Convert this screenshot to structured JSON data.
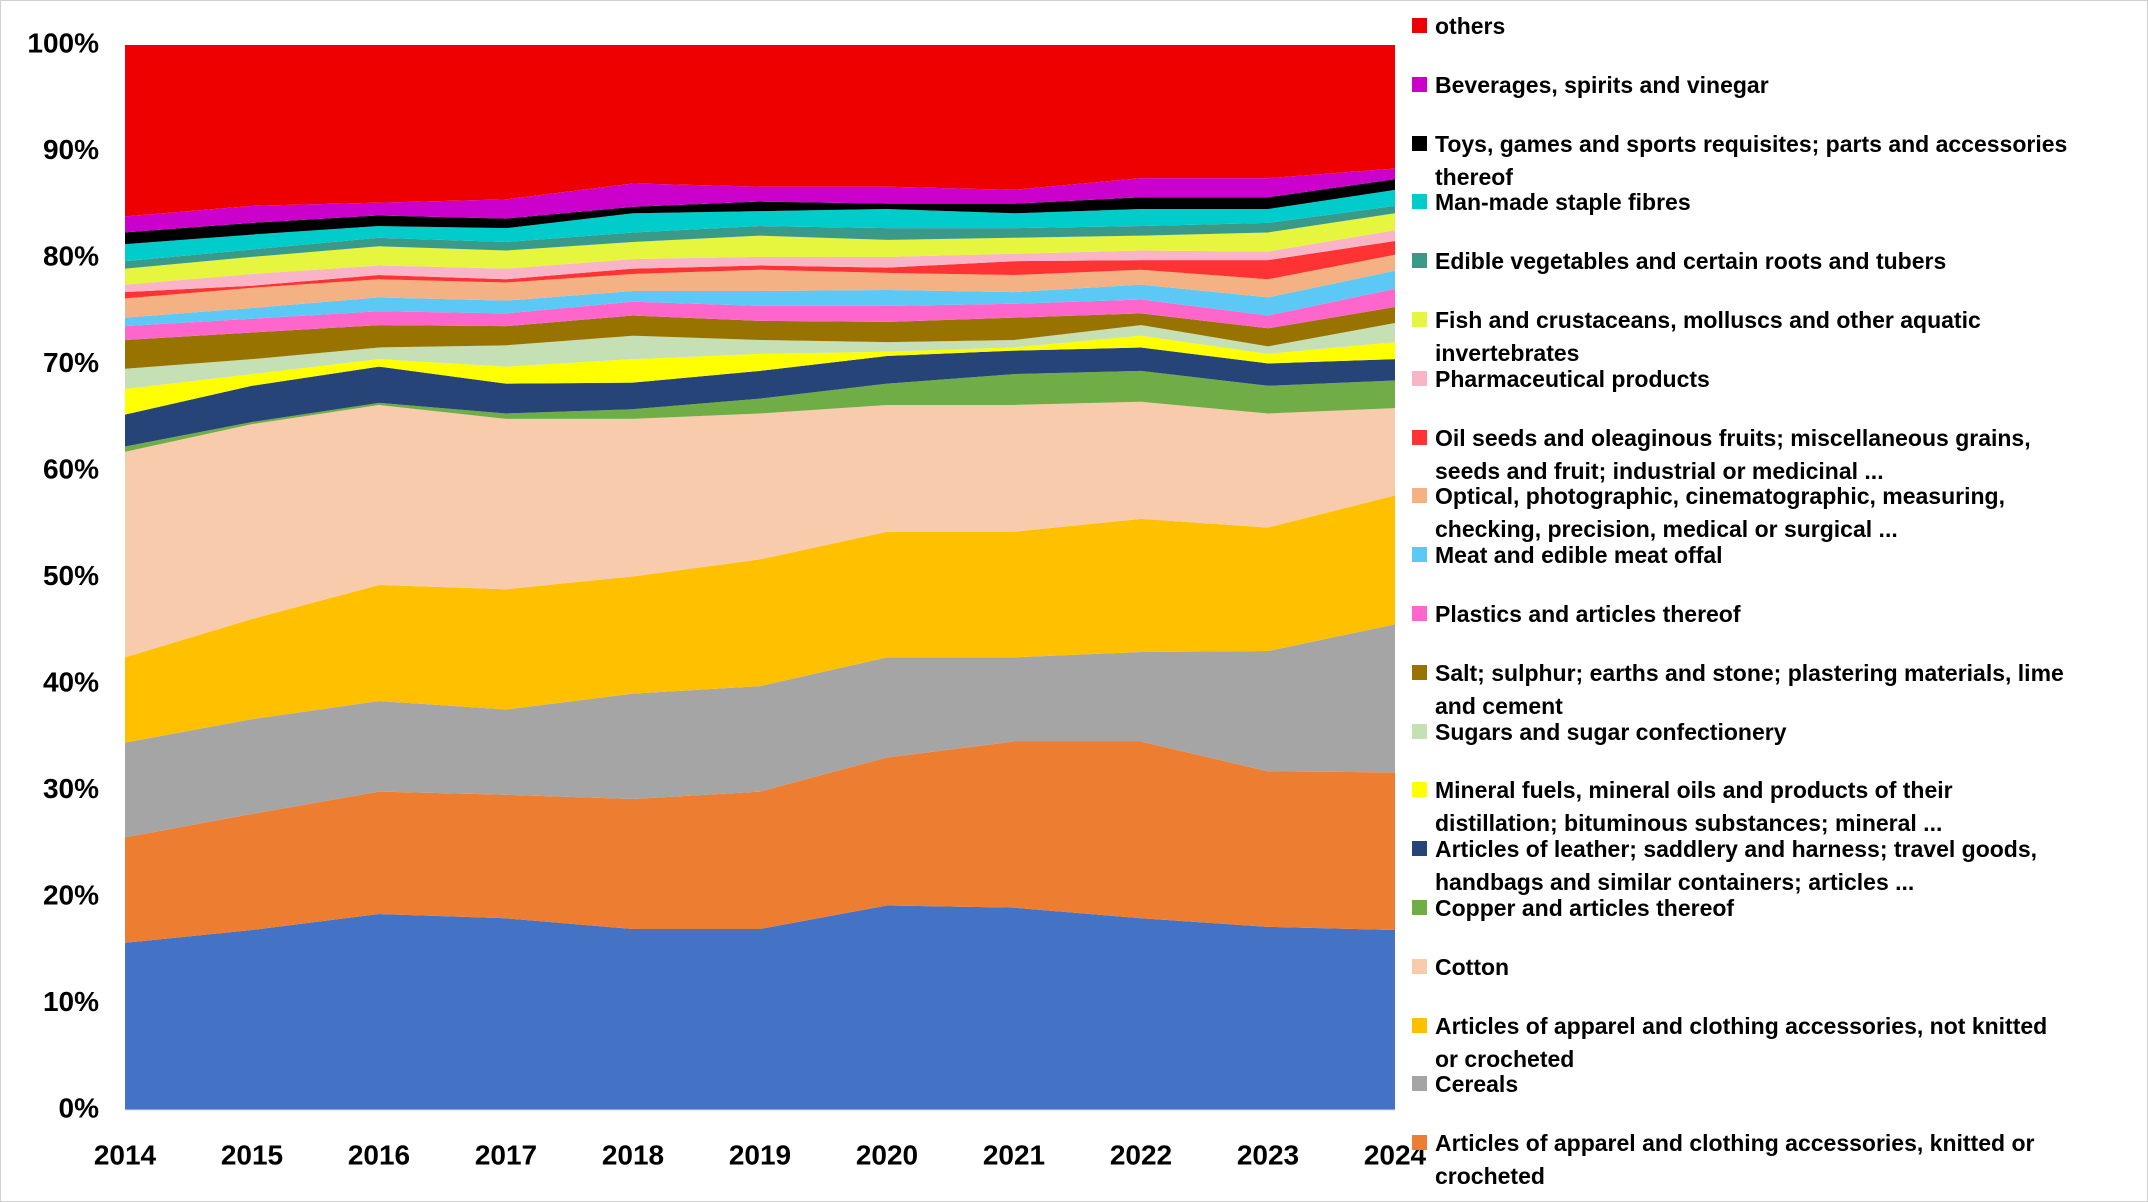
{
  "chart_data": {
    "type": "stacked_area",
    "x": [
      2014,
      2015,
      2016,
      2017,
      2018,
      2019,
      2020,
      2021,
      2022,
      2023,
      2024
    ],
    "xlim": [
      2014,
      2024
    ],
    "xticks": [
      2014,
      2015,
      2016,
      2017,
      2018,
      2019,
      2020,
      2021,
      2022,
      2023,
      2024
    ],
    "ylim": [
      0,
      100
    ],
    "yticks": [
      {
        "value": 0,
        "label": "0%"
      },
      {
        "value": 10,
        "label": "10%"
      },
      {
        "value": 20,
        "label": "20%"
      },
      {
        "value": 30,
        "label": "30%"
      },
      {
        "value": 40,
        "label": "40%"
      },
      {
        "value": 50,
        "label": "50%"
      },
      {
        "value": 60,
        "label": "60%"
      },
      {
        "value": 70,
        "label": "70%"
      },
      {
        "value": 80,
        "label": "80%"
      },
      {
        "value": 90,
        "label": "90%"
      },
      {
        "value": 100,
        "label": "100%"
      }
    ],
    "series": [
      {
        "color": "#4472c4",
        "values": [
          15.7,
          16.9,
          18.4,
          18.0,
          17.0,
          17.0,
          19.2,
          19.0,
          18.0,
          17.2,
          16.9
        ]
      },
      {
        "name": "Articles of apparel and clothing accessories, knitted or crocheted",
        "color": "#ed7d31",
        "values": [
          9.9,
          10.9,
          11.5,
          11.6,
          12.2,
          12.9,
          13.9,
          15.6,
          16.6,
          14.6,
          14.8
        ]
      },
      {
        "name": "Cereals",
        "color": "#a5a5a5",
        "values": [
          8.9,
          8.9,
          8.5,
          8.0,
          9.9,
          9.9,
          9.4,
          7.9,
          8.4,
          11.3,
          13.9
        ]
      },
      {
        "name": "Articles of apparel and clothing accessories, not knitted or crocheted",
        "color": "#ffc000",
        "values": [
          8.0,
          9.4,
          10.9,
          11.3,
          11.0,
          11.9,
          11.8,
          11.8,
          12.5,
          11.6,
          12.1
        ]
      },
      {
        "name": "Cotton",
        "color": "#f8cbad",
        "values": [
          19.3,
          18.3,
          16.9,
          16.0,
          14.8,
          13.7,
          11.9,
          11.9,
          11.0,
          10.7,
          8.2
        ]
      },
      {
        "name": "Copper and articles thereof",
        "color": "#70ad47",
        "values": [
          0.5,
          0.2,
          0.2,
          0.5,
          0.9,
          1.4,
          2.0,
          2.9,
          2.9,
          2.6,
          2.6
        ]
      },
      {
        "name": "Articles of leather; saddlery and harness; travel goods, handbags and similar containers; articles ...",
        "color": "#264478",
        "values": [
          3.0,
          3.4,
          3.4,
          2.8,
          2.5,
          2.6,
          2.6,
          2.2,
          2.2,
          2.1,
          2.0
        ]
      },
      {
        "name": "Mineral fuels, mineral oils and products of their distillation; bituminous substances; mineral ...",
        "color": "#ffff00",
        "values": [
          2.4,
          1.1,
          0.7,
          1.6,
          2.2,
          1.6,
          0.4,
          0.3,
          1.1,
          0.9,
          1.6
        ]
      },
      {
        "name": "Sugars and sugar confectionery",
        "color": "#c5e0b4",
        "values": [
          1.9,
          1.4,
          1.1,
          2.0,
          2.2,
          1.3,
          0.9,
          0.7,
          1.0,
          0.7,
          1.8
        ]
      },
      {
        "name": "Salt; sulphur; earths and stone; plastering materials, lime and cement",
        "color": "#997300",
        "values": [
          2.7,
          2.5,
          2.1,
          1.8,
          1.9,
          1.8,
          1.9,
          2.1,
          1.1,
          1.7,
          1.5
        ]
      },
      {
        "name": "Plastics and articles thereof",
        "color": "#ff66cc",
        "values": [
          1.3,
          1.3,
          1.3,
          1.2,
          1.3,
          1.4,
          1.5,
          1.3,
          1.3,
          1.2,
          1.7
        ]
      },
      {
        "name": "Meat and edible meat offal",
        "color": "#5bc8f5",
        "values": [
          0.8,
          1.0,
          1.3,
          1.2,
          1.0,
          1.4,
          1.5,
          1.1,
          1.4,
          1.7,
          1.7
        ]
      },
      {
        "name": "Optical, photographic, cinematographic, measuring, checking, precision, medical or surgical ...",
        "color": "#f4b183",
        "values": [
          1.8,
          1.9,
          1.7,
          1.7,
          1.6,
          2.0,
          1.6,
          1.6,
          1.4,
          1.7,
          1.5
        ]
      },
      {
        "name": "Oil seeds and oleaginous fruits; miscellaneous grains, seeds and fruit; industrial or medicinal ...",
        "color": "#ff3333",
        "values": [
          0.6,
          0.2,
          0.4,
          0.3,
          0.5,
          0.4,
          0.5,
          1.3,
          0.9,
          1.8,
          1.3
        ]
      },
      {
        "name": "Pharmaceutical products",
        "color": "#f9b4c8",
        "values": [
          0.7,
          1.1,
          0.9,
          1.0,
          0.9,
          0.8,
          1.0,
          0.7,
          0.9,
          0.8,
          1.0
        ]
      },
      {
        "name": "Fish and crustaceans, molluscs and other aquatic invertebrates",
        "color": "#e6f53d",
        "values": [
          1.5,
          1.6,
          1.8,
          1.7,
          1.6,
          2.0,
          1.6,
          1.5,
          1.4,
          1.8,
          1.6
        ]
      },
      {
        "name": "Edible vegetables and certain roots and tubers",
        "color": "#3a9a8a",
        "values": [
          0.7,
          0.7,
          0.8,
          0.8,
          0.9,
          0.9,
          1.1,
          0.9,
          0.9,
          0.9,
          0.7
        ]
      },
      {
        "name": "Man-made staple fibres",
        "color": "#00cccc",
        "values": [
          1.6,
          1.4,
          1.1,
          1.3,
          1.8,
          1.4,
          1.8,
          1.4,
          1.6,
          1.3,
          1.5
        ]
      },
      {
        "name": "Toys, games and sports requisites; parts and accessories thereof",
        "color": "#000000",
        "values": [
          1.1,
          1.1,
          1.0,
          0.9,
          0.6,
          0.9,
          0.5,
          0.9,
          1.1,
          1.1,
          1.0
        ]
      },
      {
        "name": "Beverages, spirits and vinegar",
        "color": "#cc00cc",
        "values": [
          1.5,
          1.6,
          1.2,
          1.8,
          2.2,
          1.4,
          1.6,
          1.3,
          1.8,
          1.8,
          1.0
        ]
      },
      {
        "name": "others",
        "color": "#ee0000",
        "values": [
          16.1,
          15.1,
          14.8,
          14.5,
          13.0,
          13.3,
          13.3,
          13.6,
          12.5,
          12.5,
          11.6
        ]
      }
    ]
  }
}
